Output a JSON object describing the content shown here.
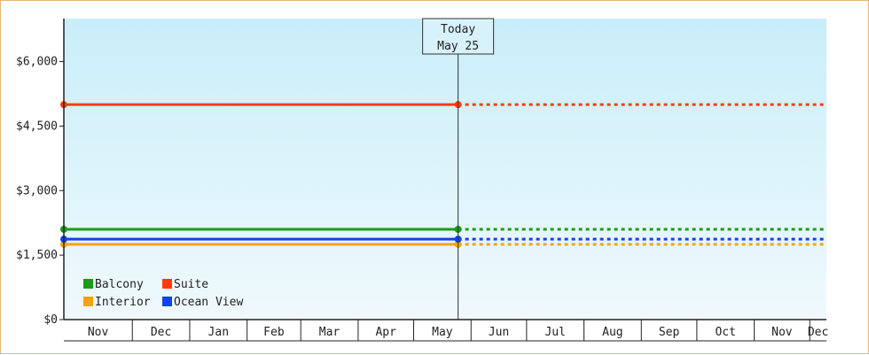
{
  "chart_data": {
    "type": "line",
    "y_axis": {
      "ticks": [
        0,
        1500,
        3000,
        4500,
        6000
      ],
      "tick_labels": [
        "$0",
        "$1,500",
        "$3,000",
        "$4,500",
        "$6,000"
      ],
      "ylim": [
        0,
        7000
      ]
    },
    "x_axis": {
      "months": [
        "Nov",
        "Dec",
        "Jan",
        "Feb",
        "Mar",
        "Apr",
        "May",
        "Jun",
        "Jul",
        "Aug",
        "Sep",
        "Oct",
        "Nov",
        "Dec"
      ],
      "range": [
        "2023-10-25",
        "2024-12-10"
      ]
    },
    "today": {
      "label": "Today",
      "date_label": "May 25",
      "date": "2024-05-25"
    },
    "series": [
      {
        "name": "Balcony",
        "color": "#1a9b1a",
        "value": 2100
      },
      {
        "name": "Suite",
        "color": "#ff3b0a",
        "value": 5000
      },
      {
        "name": "Interior",
        "color": "#f7a20f",
        "value": 1750
      },
      {
        "name": "Ocean View",
        "color": "#1042ee",
        "value": 1870
      }
    ],
    "style": {
      "historical": "solid",
      "projected": "dotted"
    },
    "legend_position": "bottom-left",
    "grid": false,
    "background_gradient": [
      "#c9eef9",
      "#f0f9fd"
    ]
  }
}
